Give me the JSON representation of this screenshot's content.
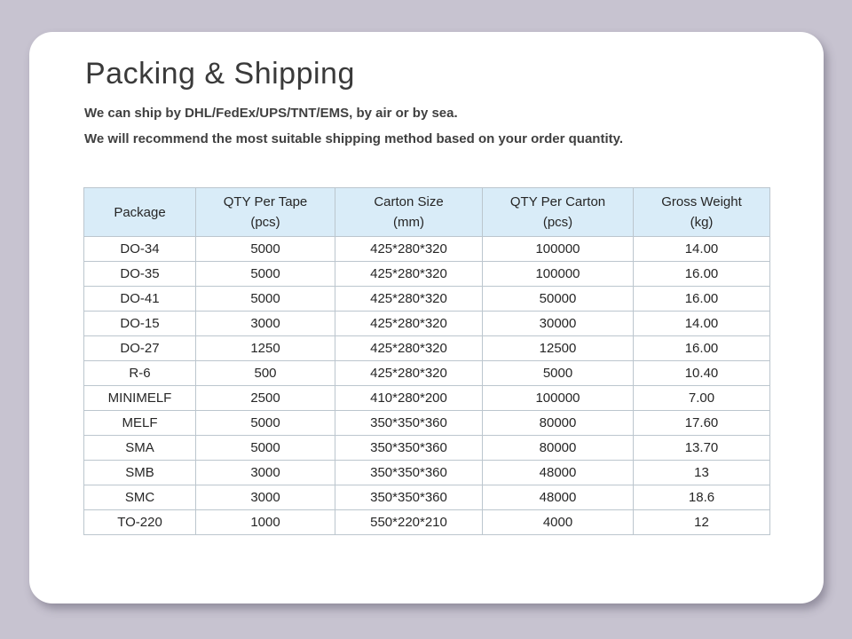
{
  "page": {
    "title": "Packing & Shipping",
    "intro_line1": "We can ship by DHL/FedEx/UPS/TNT/EMS, by air or by sea.",
    "intro_line2": "We will recommend the most suitable shipping method based on your order quantity."
  },
  "colors": {
    "page_background": "#c7c3d0",
    "card_background": "#ffffff",
    "table_header_background": "#d9ecf8",
    "table_border": "#bcc6ce",
    "title_text": "#3a3a3a",
    "body_text": "#404040"
  },
  "table": {
    "columns": [
      {
        "label": "Package",
        "unit": ""
      },
      {
        "label": "QTY Per Tape",
        "unit": "(pcs)"
      },
      {
        "label": "Carton Size",
        "unit": "(mm)"
      },
      {
        "label": "QTY Per Carton",
        "unit": "(pcs)"
      },
      {
        "label": "Gross Weight",
        "unit": "(kg)"
      }
    ],
    "rows": [
      {
        "package": "DO-34",
        "qty_per_tape": "5000",
        "carton_size": "425*280*320",
        "qty_per_carton": "100000",
        "gross_weight": "14.00"
      },
      {
        "package": "DO-35",
        "qty_per_tape": "5000",
        "carton_size": "425*280*320",
        "qty_per_carton": "100000",
        "gross_weight": "16.00"
      },
      {
        "package": "DO-41",
        "qty_per_tape": "5000",
        "carton_size": "425*280*320",
        "qty_per_carton": "50000",
        "gross_weight": "16.00"
      },
      {
        "package": "DO-15",
        "qty_per_tape": "3000",
        "carton_size": "425*280*320",
        "qty_per_carton": "30000",
        "gross_weight": "14.00"
      },
      {
        "package": "DO-27",
        "qty_per_tape": "1250",
        "carton_size": "425*280*320",
        "qty_per_carton": "12500",
        "gross_weight": "16.00"
      },
      {
        "package": "R-6",
        "qty_per_tape": "500",
        "carton_size": "425*280*320",
        "qty_per_carton": "5000",
        "gross_weight": "10.40"
      },
      {
        "package": "MINIMELF",
        "qty_per_tape": "2500",
        "carton_size": "410*280*200",
        "qty_per_carton": "100000",
        "gross_weight": "7.00"
      },
      {
        "package": "MELF",
        "qty_per_tape": "5000",
        "carton_size": "350*350*360",
        "qty_per_carton": "80000",
        "gross_weight": "17.60"
      },
      {
        "package": "SMA",
        "qty_per_tape": "5000",
        "carton_size": "350*350*360",
        "qty_per_carton": "80000",
        "gross_weight": "13.70"
      },
      {
        "package": "SMB",
        "qty_per_tape": "3000",
        "carton_size": "350*350*360",
        "qty_per_carton": "48000",
        "gross_weight": "13"
      },
      {
        "package": "SMC",
        "qty_per_tape": "3000",
        "carton_size": "350*350*360",
        "qty_per_carton": "48000",
        "gross_weight": "18.6"
      },
      {
        "package": "TO-220",
        "qty_per_tape": "1000",
        "carton_size": "550*220*210",
        "qty_per_carton": "4000",
        "gross_weight": "12"
      }
    ]
  }
}
